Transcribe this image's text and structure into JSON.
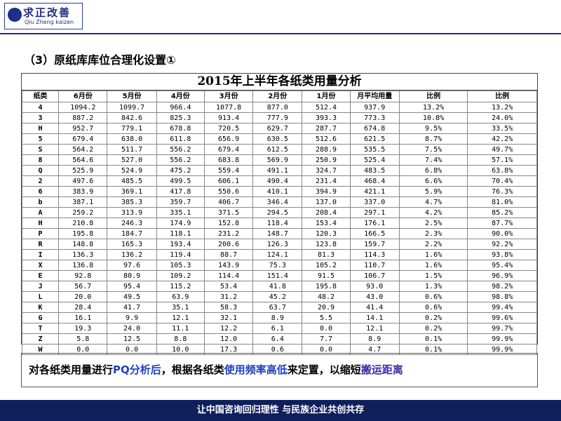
{
  "header": {
    "logo_title": "求正改善",
    "logo_subtitle": "Qiu Zheng kaizen"
  },
  "section_title": "（3）原纸库库位合理化设置①",
  "table": {
    "title": "2015年上半年各纸类用量分析",
    "columns": [
      "纸类",
      "6月份",
      "5月份",
      "4月份",
      "3月份",
      "2月份",
      "1月份",
      "月平均用量",
      "比例",
      "比例"
    ],
    "rows": [
      [
        "4",
        "1094.2",
        "1099.7",
        "966.4",
        "1077.8",
        "877.0",
        "512.4",
        "937.9",
        "13.2%",
        "13.2%"
      ],
      [
        "3",
        "887.2",
        "842.6",
        "825.3",
        "913.4",
        "777.9",
        "393.3",
        "773.3",
        "10.8%",
        "24.0%"
      ],
      [
        "H",
        "952.7",
        "779.1",
        "678.8",
        "720.5",
        "629.7",
        "287.7",
        "674.8",
        "9.5%",
        "33.5%"
      ],
      [
        "5",
        "679.4",
        "638.0",
        "611.8",
        "656.9",
        "630.5",
        "512.6",
        "621.5",
        "8.7%",
        "42.2%"
      ],
      [
        "S",
        "564.2",
        "511.7",
        "556.2",
        "679.4",
        "612.5",
        "288.9",
        "535.5",
        "7.5%",
        "49.7%"
      ],
      [
        "8",
        "564.6",
        "527.0",
        "556.2",
        "683.8",
        "569.9",
        "250.9",
        "525.4",
        "7.4%",
        "57.1%"
      ],
      [
        "Q",
        "525.9",
        "524.9",
        "475.2",
        "559.4",
        "491.1",
        "324.7",
        "483.5",
        "6.8%",
        "63.8%"
      ],
      [
        "2",
        "497.6",
        "485.5",
        "499.5",
        "606.1",
        "490.4",
        "231.4",
        "468.4",
        "6.6%",
        "70.4%"
      ],
      [
        "6",
        "383.9",
        "369.1",
        "417.8",
        "550.6",
        "410.1",
        "394.9",
        "421.1",
        "5.9%",
        "76.3%"
      ],
      [
        "b",
        "387.1",
        "385.3",
        "359.7",
        "406.7",
        "346.4",
        "137.0",
        "337.0",
        "4.7%",
        "81.0%"
      ],
      [
        "A",
        "259.2",
        "313.9",
        "335.1",
        "371.5",
        "294.5",
        "208.4",
        "297.1",
        "4.2%",
        "85.2%"
      ],
      [
        "H",
        "210.8",
        "246.3",
        "174.9",
        "152.8",
        "118.4",
        "153.4",
        "176.1",
        "2.5%",
        "87.7%"
      ],
      [
        "P",
        "195.8",
        "184.7",
        "118.1",
        "231.2",
        "148.7",
        "120.3",
        "166.5",
        "2.3%",
        "90.0%"
      ],
      [
        "R",
        "148.8",
        "165.3",
        "193.4",
        "200.6",
        "126.3",
        "123.8",
        "159.7",
        "2.2%",
        "92.2%"
      ],
      [
        "I",
        "136.3",
        "136.2",
        "119.4",
        "88.7",
        "124.1",
        "81.3",
        "114.3",
        "1.6%",
        "93.8%"
      ],
      [
        "X",
        "136.8",
        "97.6",
        "105.3",
        "143.9",
        "75.3",
        "105.2",
        "110.7",
        "1.6%",
        "95.4%"
      ],
      [
        "E",
        "92.8",
        "80.9",
        "109.2",
        "114.4",
        "151.4",
        "91.5",
        "106.7",
        "1.5%",
        "96.9%"
      ],
      [
        "J",
        "56.7",
        "95.4",
        "115.2",
        "53.4",
        "41.8",
        "195.8",
        "93.0",
        "1.3%",
        "98.2%"
      ],
      [
        "L",
        "20.0",
        "49.5",
        "63.9",
        "31.2",
        "45.2",
        "48.2",
        "43.0",
        "0.6%",
        "98.8%"
      ],
      [
        "K",
        "28.4",
        "41.7",
        "35.1",
        "58.3",
        "63.7",
        "20.9",
        "41.4",
        "0.6%",
        "99.4%"
      ],
      [
        "G",
        "16.1",
        "9.9",
        "12.1",
        "32.1",
        "8.9",
        "5.5",
        "14.1",
        "0.2%",
        "99.6%"
      ],
      [
        "T",
        "19.3",
        "24.0",
        "11.1",
        "12.2",
        "6.1",
        "0.0",
        "12.1",
        "0.2%",
        "99.7%"
      ],
      [
        "Z",
        "5.8",
        "12.5",
        "8.8",
        "12.0",
        "6.4",
        "7.7",
        "8.9",
        "0.1%",
        "99.9%"
      ],
      [
        "W",
        "0.0",
        "0.0",
        "10.0",
        "17.3",
        "0.6",
        "0.0",
        "4.7",
        "0.1%",
        "99.9%"
      ]
    ]
  },
  "statement": [
    "对各纸类用量进行",
    "PQ分析后",
    "，根据各纸类",
    "使用频率高低",
    "来定置，以缩短",
    "搬运距离"
  ],
  "footer": "让中国咨询回归理性 与民族企业共创共存"
}
